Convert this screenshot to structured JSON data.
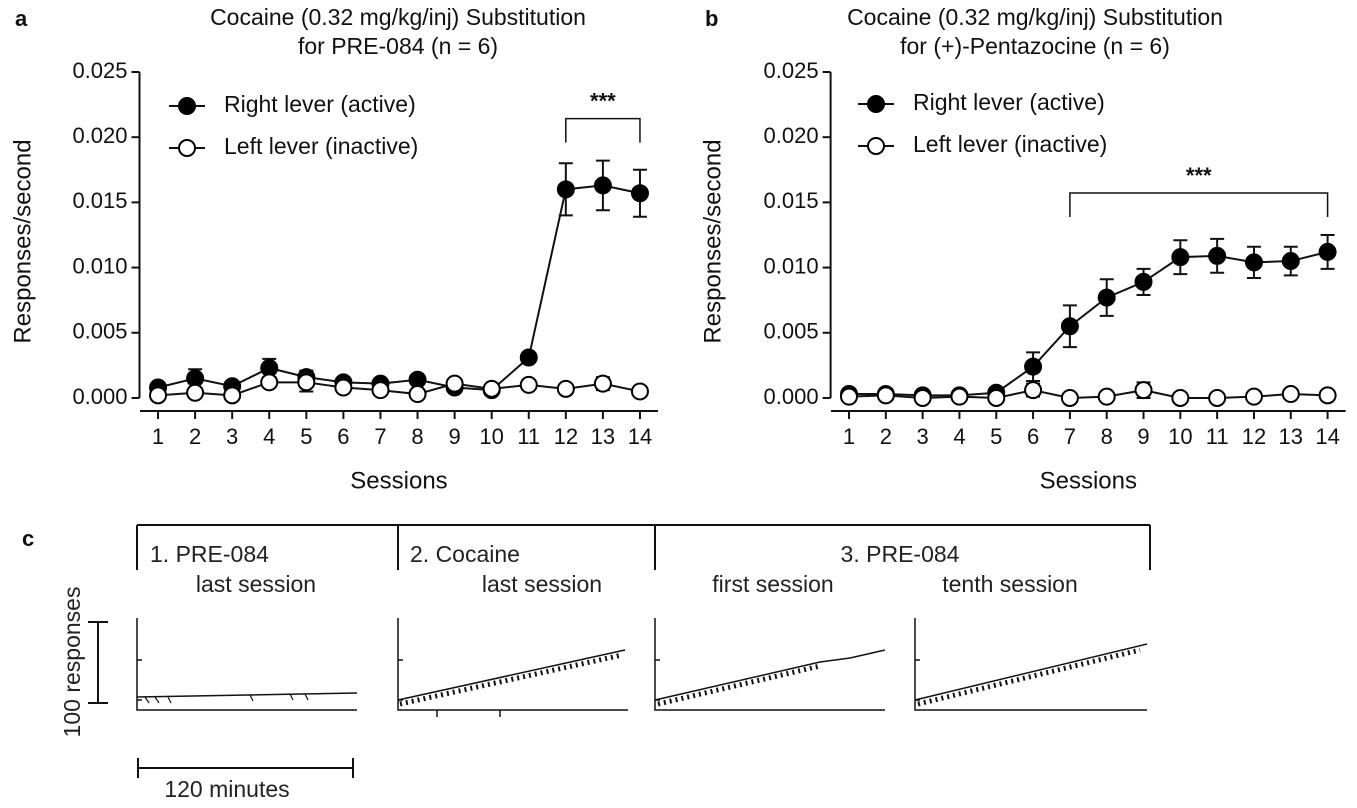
{
  "chart_data": [
    {
      "type": "line",
      "panel_label": "a",
      "title": [
        "Cocaine (0.32 mg/kg/inj) Substitution",
        "for PRE-084 (n = 6)"
      ],
      "x_label": "Sessions",
      "y_label": "Responses/second",
      "x": [
        1,
        2,
        3,
        4,
        5,
        6,
        7,
        8,
        9,
        10,
        11,
        12,
        13,
        14
      ],
      "xlim": [
        0.5,
        14.5
      ],
      "xticks": [
        1,
        2,
        3,
        4,
        5,
        6,
        7,
        8,
        9,
        10,
        11,
        12,
        13,
        14
      ],
      "ylim": [
        -0.001,
        0.025
      ],
      "yticks": [
        {
          "value": 0,
          "label": "0.000"
        },
        {
          "value": 0.005,
          "label": "0.005"
        },
        {
          "value": 0.01,
          "label": "0.010"
        },
        {
          "value": 0.015,
          "label": "0.015"
        },
        {
          "value": 0.02,
          "label": "0.020"
        },
        {
          "value": 0.025,
          "label": "0.025"
        }
      ],
      "legend": "upper left",
      "series": [
        {
          "name": "Right lever (active)",
          "color": "#000000",
          "marker_fill": "#000000",
          "values": [
            0.0008,
            0.0015,
            0.0009,
            0.0023,
            0.0016,
            0.0012,
            0.0011,
            0.0014,
            0.0008,
            0.0006,
            0.0031,
            0.016,
            0.0163,
            0.0157
          ],
          "errors": [
            0.0003,
            0.0007,
            0.0003,
            0.0007,
            0.0005,
            0.0003,
            0.0003,
            0.0003,
            0.0003,
            0.0003,
            0.0003,
            0.002,
            0.0019,
            0.0018
          ]
        },
        {
          "name": "Left lever (inactive)",
          "color": "#000000",
          "marker_fill": "#ffffff",
          "values": [
            0.0002,
            0.0004,
            0.0002,
            0.0012,
            0.0012,
            0.0008,
            0.0006,
            0.0003,
            0.0011,
            0.0007,
            0.001,
            0.0007,
            0.0011,
            0.0005
          ],
          "errors": [
            0.0002,
            0.0003,
            0.0002,
            0.0004,
            0.0007,
            0.0003,
            0.0003,
            0.0002,
            0.0003,
            0.0003,
            0.0002,
            0.0002,
            0.0005,
            0.0002
          ]
        }
      ],
      "annotation": {
        "text": "***",
        "x_range": [
          12,
          14
        ]
      }
    },
    {
      "type": "line",
      "panel_label": "b",
      "title": [
        "Cocaine (0.32 mg/kg/inj) Substitution",
        "for (+)-Pentazocine (n = 6)"
      ],
      "x_label": "Sessions",
      "y_label": "Responses/second",
      "x": [
        1,
        2,
        3,
        4,
        5,
        6,
        7,
        8,
        9,
        10,
        11,
        12,
        13,
        14
      ],
      "xlim": [
        0.5,
        14.5
      ],
      "xticks": [
        1,
        2,
        3,
        4,
        5,
        6,
        7,
        8,
        9,
        10,
        11,
        12,
        13,
        14
      ],
      "ylim": [
        -0.001,
        0.025
      ],
      "yticks": [
        {
          "value": 0,
          "label": "0.000"
        },
        {
          "value": 0.005,
          "label": "0.005"
        },
        {
          "value": 0.01,
          "label": "0.010"
        },
        {
          "value": 0.015,
          "label": "0.015"
        },
        {
          "value": 0.02,
          "label": "0.020"
        },
        {
          "value": 0.025,
          "label": "0.025"
        }
      ],
      "legend": "upper left",
      "series": [
        {
          "name": "Right lever (active)",
          "color": "#000000",
          "marker_fill": "#000000",
          "values": [
            0.0003,
            0.0003,
            0.0002,
            0.0002,
            0.0004,
            0.0024,
            0.0055,
            0.0077,
            0.0089,
            0.0108,
            0.0109,
            0.0104,
            0.0105,
            0.0112
          ],
          "errors": [
            0.0002,
            0.0002,
            0.0002,
            0.0002,
            0.0003,
            0.0011,
            0.0016,
            0.0014,
            0.001,
            0.0013,
            0.0013,
            0.0012,
            0.0011,
            0.0013
          ]
        },
        {
          "name": "Left lever (inactive)",
          "color": "#000000",
          "marker_fill": "#ffffff",
          "values": [
            0.0001,
            0.0002,
            0,
            0.0001,
            0,
            0.0006,
            0,
            0.0001,
            0.0006,
            0,
            0,
            0.0001,
            0.0003,
            0.0002
          ],
          "errors": [
            0.0001,
            0.0001,
            0.0001,
            0.0001,
            0.0001,
            0.0005,
            0.0001,
            0.0001,
            0.0006,
            0.0001,
            0.0001,
            0.0001,
            0.0002,
            0.0002
          ]
        }
      ],
      "annotation": {
        "text": "***",
        "x_range": [
          7,
          14
        ]
      }
    }
  ],
  "panel_c": {
    "panel_label": "c",
    "sections": [
      "1. PRE-084",
      "2. Cocaine",
      "3. PRE-084"
    ],
    "subtitles": [
      "last session",
      "last session",
      "first session",
      "tenth session"
    ],
    "y_scale": "100 responses",
    "x_scale": "120 minutes"
  }
}
